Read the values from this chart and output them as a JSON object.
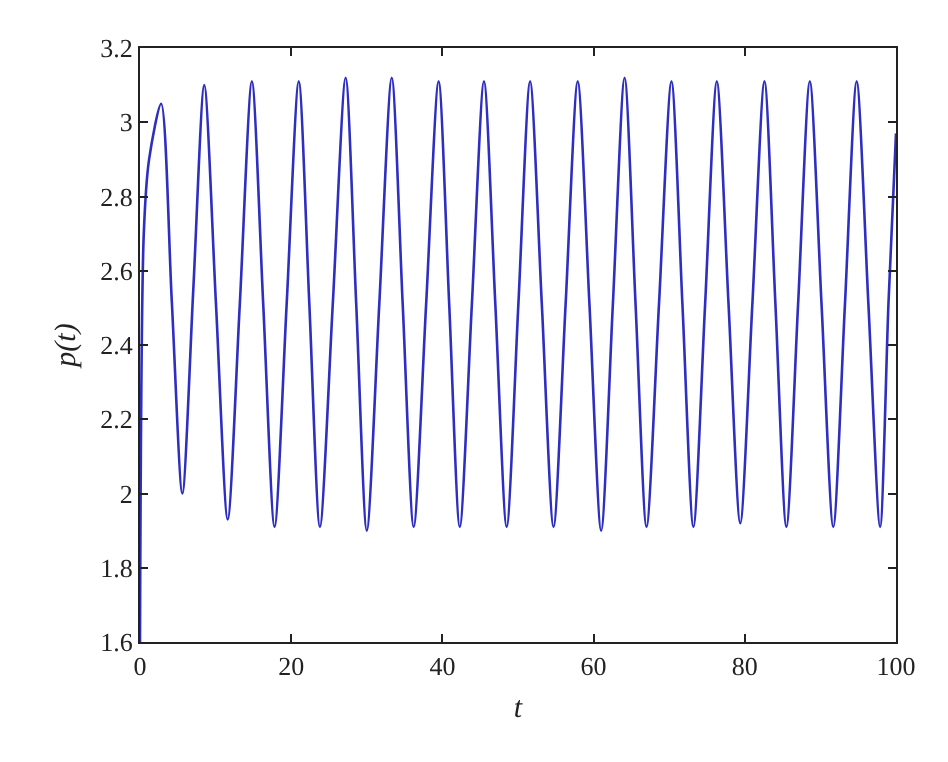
{
  "chart_data": {
    "type": "line",
    "xlabel": "t",
    "ylabel": "p(t)",
    "x": [
      0,
      0.5,
      1.2,
      2.8,
      4.2,
      5.6,
      7.05,
      8.5,
      10.05,
      11.6,
      13.2,
      14.8,
      16.3,
      17.8,
      19.4,
      21.0,
      22.4,
      23.8,
      25.5,
      27.2,
      28.6,
      30.0,
      31.65,
      33.3,
      34.75,
      36.2,
      37.85,
      39.5,
      40.9,
      42.3,
      43.9,
      45.5,
      47.0,
      48.5,
      50.05,
      51.6,
      53.15,
      54.7,
      56.3,
      57.9,
      59.45,
      61.0,
      62.55,
      64.1,
      65.55,
      67.0,
      68.65,
      70.3,
      71.75,
      73.2,
      74.75,
      76.3,
      77.85,
      79.4,
      81.0,
      82.6,
      84.05,
      85.5,
      87.05,
      88.6,
      90.15,
      91.7,
      93.25,
      94.8,
      96.35,
      97.9,
      99.0,
      100
    ],
    "series": [
      {
        "color": "#2e2ec0",
        "values": [
          1.6,
          2.7,
          2.9,
          3.05,
          2.52,
          2.0,
          2.55,
          3.1,
          2.51,
          1.93,
          2.51,
          3.11,
          2.51,
          1.91,
          2.51,
          3.11,
          2.51,
          1.91,
          2.51,
          3.12,
          2.51,
          1.9,
          2.51,
          3.12,
          2.51,
          1.91,
          2.51,
          3.11,
          2.51,
          1.91,
          2.51,
          3.11,
          2.51,
          1.91,
          2.51,
          3.11,
          2.51,
          1.91,
          2.51,
          3.11,
          2.51,
          1.9,
          2.51,
          3.12,
          2.51,
          1.91,
          2.51,
          3.11,
          2.51,
          1.91,
          2.51,
          3.11,
          2.51,
          1.92,
          2.51,
          3.11,
          2.51,
          1.91,
          2.51,
          3.11,
          2.51,
          1.91,
          2.51,
          3.11,
          2.51,
          1.91,
          2.51,
          2.97
        ]
      }
    ],
    "xlim": [
      0,
      100
    ],
    "xticks": [
      0,
      20,
      40,
      60,
      80,
      100
    ],
    "ylim": [
      1.6,
      3.2
    ],
    "yticks": [
      1.6,
      1.8,
      2,
      2.2,
      2.4,
      2.6,
      2.8,
      3,
      3.2
    ],
    "grid": false,
    "marker": "none",
    "line_style": "solid"
  }
}
